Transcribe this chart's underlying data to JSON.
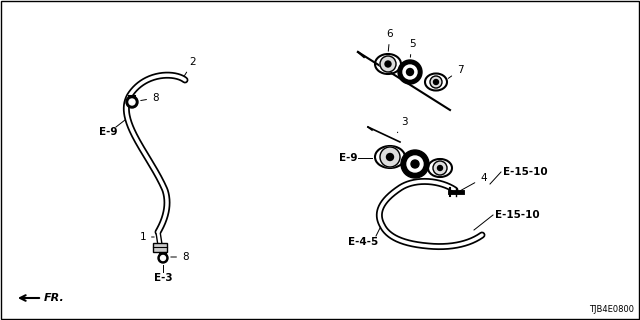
{
  "background_color": "#ffffff",
  "part_number": "TJB4E0800",
  "text_color": "#000000",
  "fs": 7.5,
  "labels": {
    "part1": "1",
    "part2": "2",
    "part3": "3",
    "part4": "4",
    "part5": "5",
    "part6": "6",
    "part7": "7",
    "part8": "8",
    "E9a": "E-9",
    "E9b": "E-9",
    "E3": "E-3",
    "E4_5": "E-4-5",
    "E15_10a": "E-15-10",
    "E15_10b": "E-15-10",
    "FR": "FR."
  }
}
